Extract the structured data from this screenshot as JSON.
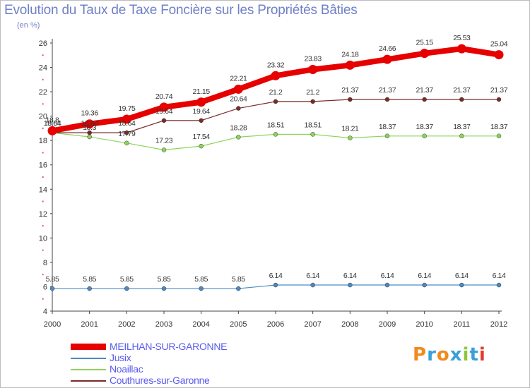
{
  "title": "Evolution du Taux de Taxe Foncière sur les Propriétés Bâties",
  "unit_label": "(en %)",
  "logo": {
    "text": "Proxiti",
    "colors": [
      "#f08a1c",
      "#3aa0d8",
      "#f08a1c",
      "#3aa0d8",
      "#8cc63f",
      "#3aa0d8",
      "#e03a2a"
    ]
  },
  "colors": {
    "title": "#7080c8",
    "legend_text": "#5a5aee",
    "axis": "#444444",
    "grid_dots": "#e03030"
  },
  "chart_data": {
    "type": "line",
    "title": "Evolution du Taux de Taxe Foncière sur les Propriétés Bâties",
    "ylabel": "(en %)",
    "xlabel": "",
    "x": [
      "2000",
      "2001",
      "2002",
      "2003",
      "2004",
      "2005",
      "2006",
      "2007",
      "2008",
      "2009",
      "2010",
      "2011",
      "2012"
    ],
    "ylim": [
      4,
      26
    ],
    "yticks": [
      4,
      6,
      8,
      10,
      12,
      14,
      16,
      18,
      20,
      22,
      24,
      26
    ],
    "series": [
      {
        "name": "MEILHAN-SUR-GARONNE",
        "color": "#e60000",
        "values": [
          18.8,
          19.36,
          19.75,
          20.74,
          21.15,
          22.21,
          23.32,
          23.83,
          24.18,
          24.66,
          25.15,
          25.53,
          25.04
        ],
        "labels": [
          "18.8",
          "19.36",
          "19.75",
          "20.74",
          "21.15",
          "22.21",
          "23.32",
          "23.83",
          "24.18",
          "24.66",
          "25.15",
          "25.53",
          "25.04"
        ]
      },
      {
        "name": "Jusix",
        "color": "#4a8ac4",
        "values": [
          5.85,
          5.85,
          5.85,
          5.85,
          5.85,
          5.85,
          6.14,
          6.14,
          6.14,
          6.14,
          6.14,
          6.14,
          6.14
        ],
        "labels": [
          "5.85",
          "5.85",
          "5.85",
          "5.85",
          "5.85",
          "5.85",
          "6.14",
          "6.14",
          "6.14",
          "6.14",
          "6.14",
          "6.14",
          "6.14"
        ]
      },
      {
        "name": "Noaillac",
        "color": "#8ed45a",
        "values": [
          18.64,
          18.3,
          17.79,
          17.23,
          17.54,
          18.28,
          18.51,
          18.51,
          18.21,
          18.37,
          18.37,
          18.37,
          18.37
        ],
        "labels": [
          "18.64",
          "18.3",
          "17.79",
          "17.23",
          "17.54",
          "18.28",
          "18.51",
          "18.51",
          "18.21",
          "18.37",
          "18.37",
          "18.37",
          "18.37"
        ]
      },
      {
        "name": "Couthures-sur-Garonne",
        "color": "#7a2a2a",
        "values": [
          18.64,
          18.64,
          18.64,
          19.64,
          19.64,
          20.64,
          21.2,
          21.2,
          21.37,
          21.37,
          21.37,
          21.37,
          21.37
        ],
        "labels": [
          "18.64",
          "18.64",
          "18.64",
          "19.64",
          "19.64",
          "20.64",
          "21.2",
          "21.2",
          "21.37",
          "21.37",
          "21.37",
          "21.37",
          "21.37"
        ]
      }
    ],
    "legend_position": "bottom-left"
  }
}
